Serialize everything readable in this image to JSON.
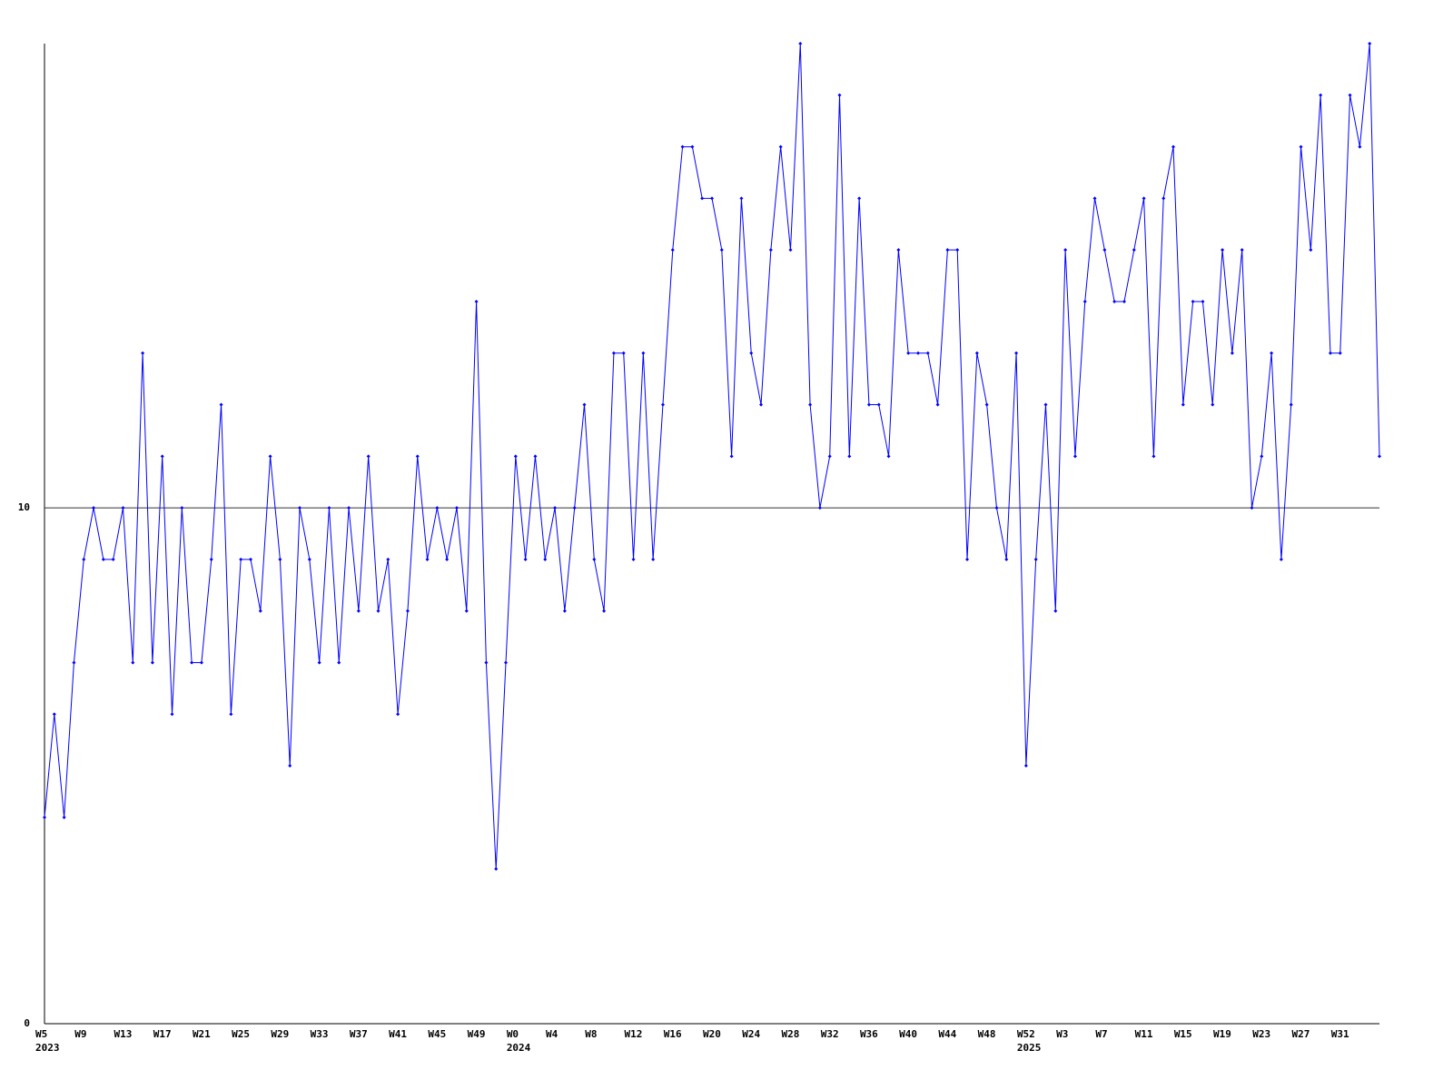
{
  "chart_data": {
    "type": "line",
    "categories": [
      "W5",
      null,
      null,
      null,
      "W9",
      null,
      null,
      null,
      "W13",
      null,
      null,
      null,
      "W17",
      null,
      null,
      null,
      "W21",
      null,
      null,
      null,
      "W25",
      null,
      null,
      null,
      "W29",
      null,
      null,
      null,
      "W33",
      null,
      null,
      null,
      "W37",
      null,
      null,
      null,
      "W41",
      null,
      null,
      null,
      "W45",
      null,
      null,
      null,
      "W49",
      null,
      null,
      null,
      "W0",
      null,
      null,
      null,
      "W4",
      null,
      null,
      null,
      "W8",
      null,
      null,
      null,
      "W12",
      null,
      null,
      null,
      "W16",
      null,
      null,
      null,
      "W20",
      null,
      null,
      null,
      "W24",
      null,
      null,
      null,
      "W28",
      null,
      null,
      null,
      "W32",
      null,
      null,
      null,
      "W36",
      null,
      null,
      null,
      "W40",
      null,
      null,
      null,
      "W44",
      null,
      null,
      null,
      "W48",
      null,
      null,
      null,
      "W52",
      null,
      null,
      null,
      "W3",
      null,
      null,
      null,
      "W7",
      null,
      null,
      null,
      "W11",
      null,
      null,
      null,
      "W15",
      null,
      null,
      null,
      "W19",
      null,
      null,
      null,
      "W23",
      null,
      null,
      null,
      "W27",
      null,
      null,
      null,
      "W31",
      null,
      null,
      null,
      null
    ],
    "years": [
      {
        "label": "2023",
        "category": 0
      },
      {
        "label": "2024",
        "category": 48
      },
      {
        "label": "2025",
        "category": 100
      }
    ],
    "values": [
      4,
      6,
      4,
      7,
      9,
      10,
      9,
      9,
      10,
      7,
      13,
      7,
      11,
      6,
      10,
      7,
      7,
      9,
      12,
      6,
      9,
      9,
      8,
      11,
      9,
      5,
      10,
      9,
      7,
      10,
      7,
      10,
      8,
      11,
      8,
      9,
      6,
      8,
      11,
      9,
      10,
      9,
      10,
      8,
      14,
      7,
      3,
      7,
      11,
      9,
      11,
      9,
      10,
      8,
      10,
      12,
      9,
      8,
      13,
      13,
      9,
      13,
      9,
      12,
      15,
      17,
      17,
      16,
      16,
      15,
      11,
      16,
      13,
      12,
      15,
      17,
      15,
      19,
      12,
      10,
      11,
      18,
      11,
      16,
      12,
      12,
      11,
      15,
      13,
      13,
      13,
      12,
      15,
      15,
      9,
      13,
      12,
      10,
      9,
      13,
      5,
      9,
      12,
      8,
      15,
      11,
      14,
      16,
      15,
      14,
      14,
      15,
      16,
      11,
      16,
      17,
      12,
      14,
      14,
      12,
      15,
      13,
      15,
      10,
      11,
      13,
      9,
      12,
      17,
      15,
      18,
      13,
      13,
      18,
      17,
      19,
      11
    ],
    "color": "#0000ff",
    "ylim": [
      0,
      19
    ],
    "yticks": [
      0,
      10
    ],
    "grid": true
  }
}
